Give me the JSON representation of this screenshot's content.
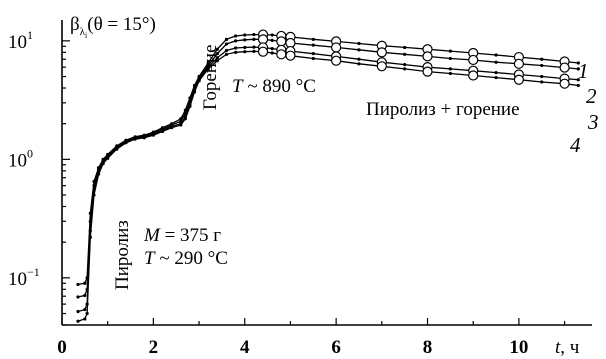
{
  "chart_data": {
    "type": "line",
    "ylabel_prefix": "β",
    "ylabel_sub": "λ",
    "ylabel_subsub": "i",
    "ylabel_suffix": "(θ = 15°)",
    "xlabel_var": "t",
    "xlabel_unit": ", ч",
    "y_scale": "log",
    "ylim": [
      0.04,
      15
    ],
    "xlim": [
      0,
      11.6
    ],
    "x_ticks": [
      {
        "value": 0,
        "label": "0"
      },
      {
        "value": 2,
        "label": "2"
      },
      {
        "value": 4,
        "label": "4"
      },
      {
        "value": 6,
        "label": "6"
      },
      {
        "value": 8,
        "label": "8"
      },
      {
        "value": 10,
        "label": "10"
      }
    ],
    "y_ticks": [
      {
        "value": 10,
        "base": "10",
        "exp": "1"
      },
      {
        "value": 1,
        "base": "10",
        "exp": "0"
      },
      {
        "value": 0.1,
        "base": "10",
        "exp": "−1"
      }
    ],
    "grid": false,
    "annotations": {
      "pyrolysis": "Пиролиз",
      "combustion": "Горение",
      "temp_high_var": "T",
      "temp_high_value": " ~ 890 °С",
      "pyro_combustion": "Пиролиз + горение",
      "mass_var": "M",
      "mass_value": " = 375 г",
      "temp_low_var": "T",
      "temp_low_value": " ~ 290 °С"
    },
    "series": [
      {
        "label": "1",
        "x": [
          0.35,
          0.5,
          0.55,
          0.62,
          0.7,
          0.8,
          0.9,
          1.0,
          1.2,
          1.4,
          1.6,
          1.8,
          2.0,
          2.2,
          2.4,
          2.6,
          2.7,
          2.8,
          2.9,
          3.0,
          3.2,
          3.4,
          3.6,
          3.8,
          4.0,
          4.2,
          4.4,
          4.6,
          4.8,
          5.0,
          5.5,
          6.0,
          6.5,
          7.0,
          7.5,
          8.0,
          8.5,
          9.0,
          9.5,
          10.0,
          10.5,
          11.0,
          11.3
        ],
        "y": [
          0.088,
          0.09,
          0.1,
          0.35,
          0.65,
          0.85,
          1.0,
          1.1,
          1.3,
          1.45,
          1.55,
          1.6,
          1.7,
          1.85,
          2.0,
          2.2,
          2.6,
          3.3,
          4.2,
          5.0,
          6.5,
          8.5,
          10.3,
          11.0,
          11.2,
          11.3,
          11.3,
          11.2,
          11.0,
          10.8,
          10.3,
          9.9,
          9.5,
          9.1,
          8.8,
          8.5,
          8.2,
          7.9,
          7.6,
          7.3,
          7.0,
          6.7,
          6.5
        ]
      },
      {
        "label": "2",
        "x": [
          0.35,
          0.5,
          0.55,
          0.62,
          0.7,
          0.8,
          0.9,
          1.0,
          1.2,
          1.4,
          1.6,
          1.8,
          2.0,
          2.2,
          2.4,
          2.6,
          2.7,
          2.8,
          2.9,
          3.0,
          3.2,
          3.4,
          3.6,
          3.8,
          4.0,
          4.2,
          4.4,
          4.6,
          4.8,
          5.0,
          5.5,
          6.0,
          6.5,
          7.0,
          7.5,
          8.0,
          8.5,
          9.0,
          9.5,
          10.0,
          10.5,
          11.0,
          11.3
        ],
        "y": [
          0.069,
          0.071,
          0.08,
          0.3,
          0.6,
          0.82,
          0.98,
          1.08,
          1.28,
          1.43,
          1.52,
          1.58,
          1.67,
          1.8,
          1.95,
          2.1,
          2.45,
          3.1,
          4.0,
          4.9,
          6.2,
          7.8,
          9.4,
          10.0,
          10.2,
          10.3,
          10.3,
          10.1,
          9.9,
          9.6,
          9.2,
          8.8,
          8.4,
          8.0,
          7.7,
          7.4,
          7.1,
          6.9,
          6.6,
          6.4,
          6.2,
          5.95,
          5.8
        ]
      },
      {
        "label": "3",
        "x": [
          0.35,
          0.5,
          0.55,
          0.62,
          0.7,
          0.8,
          0.9,
          1.0,
          1.2,
          1.4,
          1.6,
          1.8,
          2.0,
          2.2,
          2.4,
          2.6,
          2.7,
          2.8,
          2.9,
          3.0,
          3.2,
          3.4,
          3.6,
          3.8,
          4.0,
          4.2,
          4.4,
          4.6,
          4.8,
          5.0,
          5.5,
          6.0,
          6.5,
          7.0,
          7.5,
          8.0,
          8.5,
          9.0,
          9.5,
          10.0,
          10.5,
          11.0,
          11.3
        ],
        "y": [
          0.052,
          0.054,
          0.06,
          0.25,
          0.55,
          0.78,
          0.95,
          1.05,
          1.25,
          1.4,
          1.5,
          1.55,
          1.63,
          1.75,
          1.9,
          2.0,
          2.3,
          2.9,
          3.8,
          4.7,
          6.0,
          7.2,
          8.3,
          8.7,
          8.8,
          8.85,
          8.8,
          8.6,
          8.4,
          8.2,
          7.8,
          7.4,
          7.0,
          6.6,
          6.3,
          6.0,
          5.8,
          5.6,
          5.4,
          5.2,
          5.0,
          4.8,
          4.7
        ]
      },
      {
        "label": "4",
        "x": [
          0.35,
          0.5,
          0.55,
          0.62,
          0.7,
          0.8,
          0.9,
          1.0,
          1.2,
          1.4,
          1.6,
          1.8,
          2.0,
          2.2,
          2.4,
          2.6,
          2.7,
          2.8,
          2.9,
          3.0,
          3.2,
          3.4,
          3.6,
          3.8,
          4.0,
          4.2,
          4.4,
          4.6,
          4.8,
          5.0,
          5.5,
          6.0,
          6.5,
          7.0,
          7.5,
          8.0,
          8.5,
          9.0,
          9.5,
          10.0,
          10.5,
          11.0,
          11.3
        ],
        "y": [
          0.043,
          0.045,
          0.05,
          0.22,
          0.5,
          0.75,
          0.92,
          1.02,
          1.22,
          1.38,
          1.48,
          1.52,
          1.6,
          1.72,
          1.85,
          1.95,
          2.2,
          2.8,
          3.7,
          4.6,
          5.8,
          6.8,
          7.7,
          8.0,
          8.1,
          8.15,
          8.1,
          7.9,
          7.7,
          7.5,
          7.1,
          6.8,
          6.4,
          6.1,
          5.8,
          5.5,
          5.3,
          5.1,
          4.9,
          4.7,
          4.5,
          4.35,
          4.2
        ]
      }
    ]
  }
}
